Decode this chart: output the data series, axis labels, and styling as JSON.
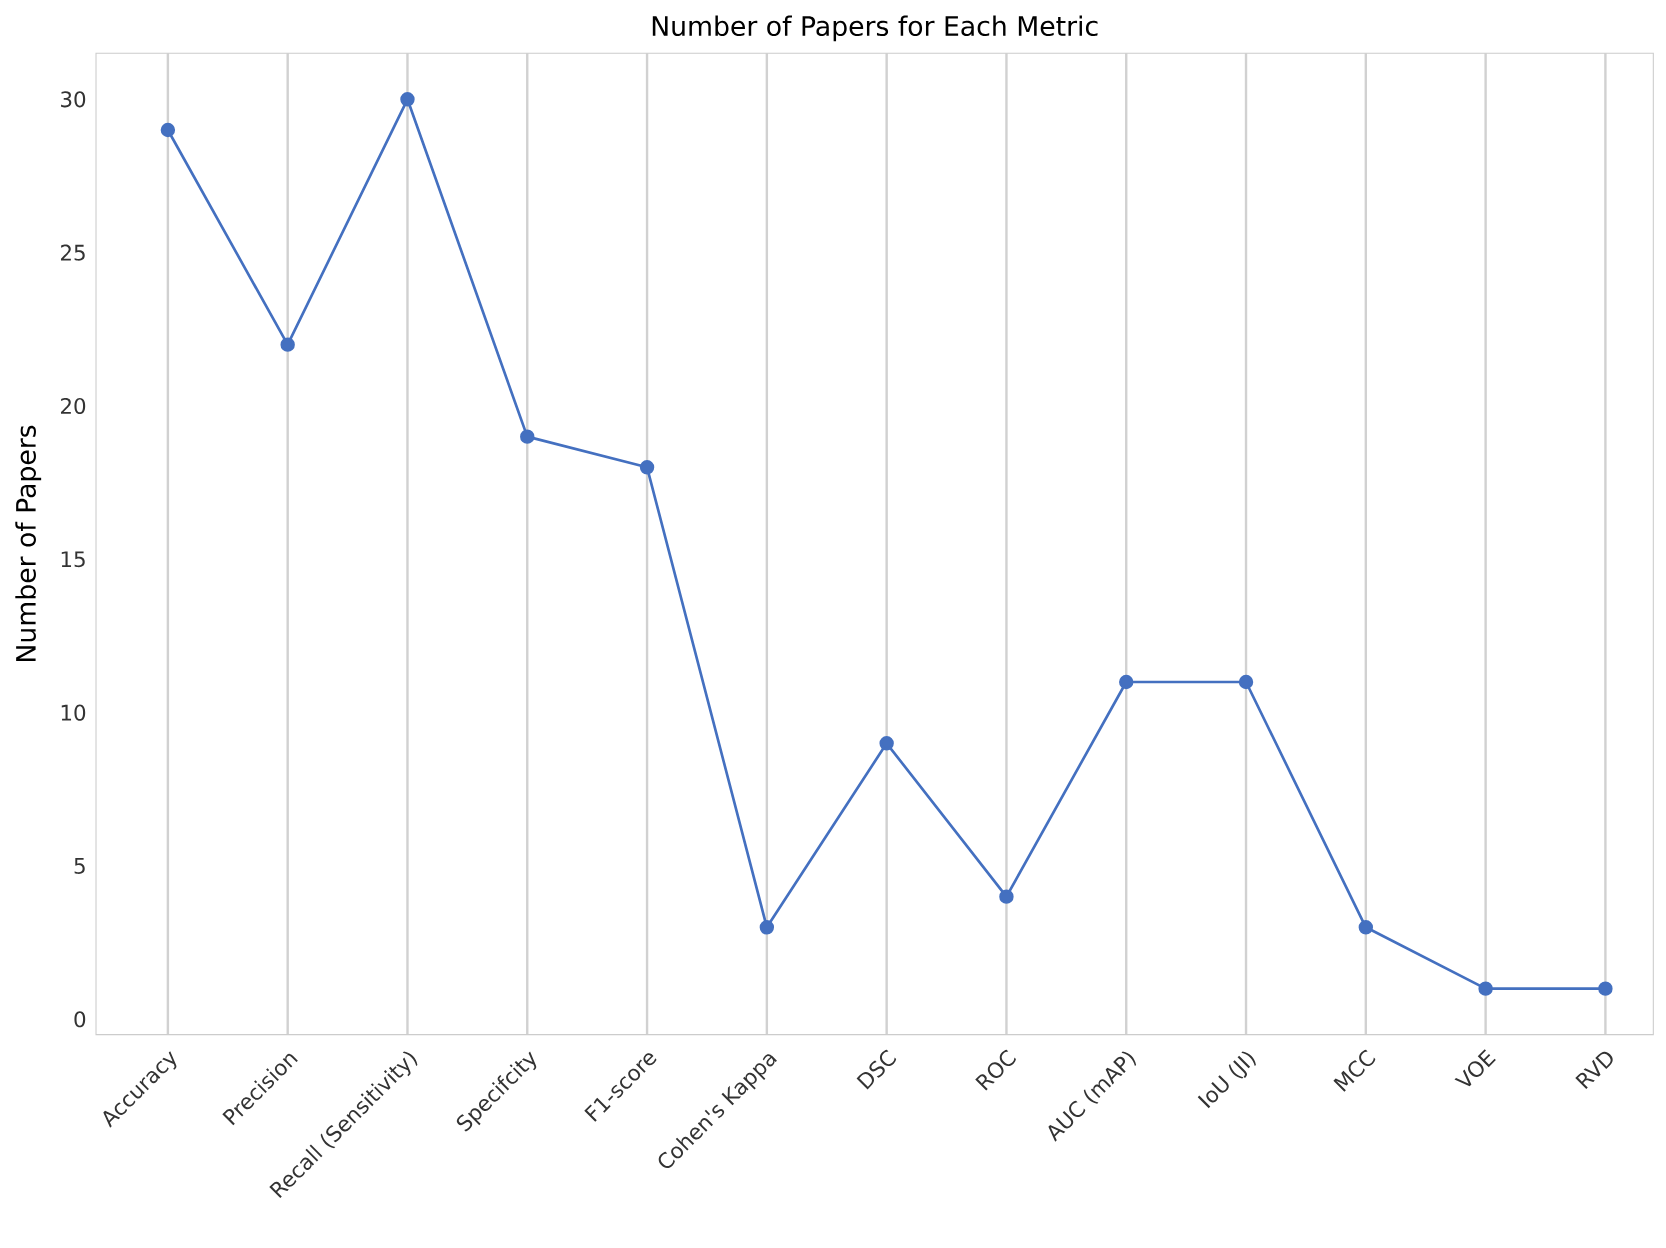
{
  "chart_data": {
    "type": "line",
    "title": "Number of Papers for Each Metric",
    "ylabel": "Number of Papers",
    "categories": [
      "Accuracy",
      "Precision",
      "Recall (Sensitivity)",
      "Specifcity",
      "F1-score",
      "Cohen's Kappa",
      "DSC",
      "ROC",
      "AUC (mAP)",
      "IoU (JI)",
      "MCC",
      "VOE",
      "RVD"
    ],
    "values": [
      29,
      22,
      30,
      19,
      18,
      3,
      9,
      4,
      11,
      11,
      3,
      1,
      1
    ],
    "color": "#4470c0",
    "marker": "circle",
    "line_style": "solid",
    "grid": "x",
    "ylim": [
      -0.5,
      31.5
    ],
    "yticks": [
      0,
      5,
      10,
      15,
      20,
      25,
      30
    ]
  }
}
